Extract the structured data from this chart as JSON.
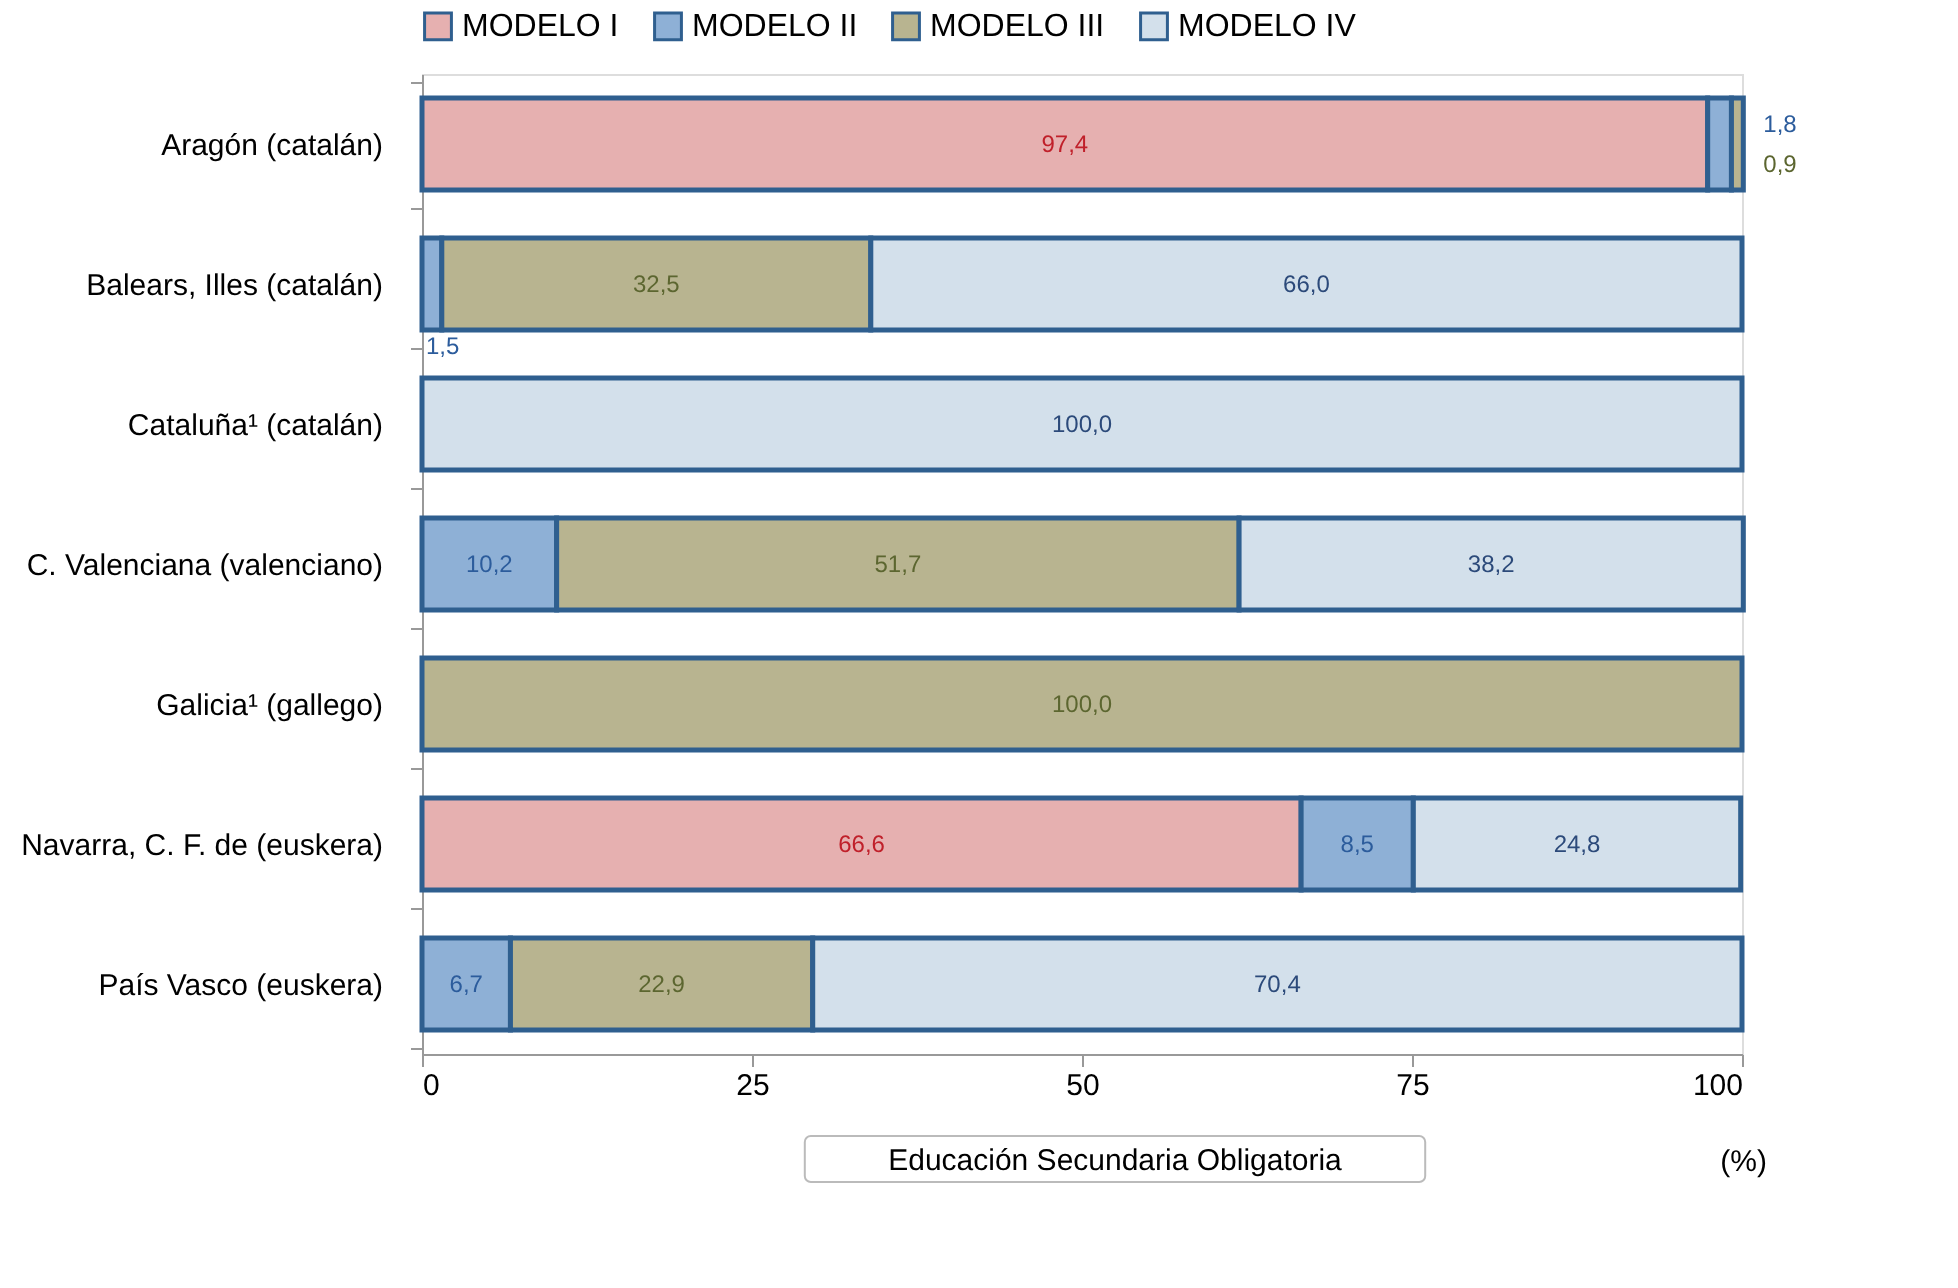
{
  "chart_data": {
    "type": "bar",
    "orientation": "horizontal",
    "stacked": true,
    "categories": [
      "Aragón  (catalán)",
      "Balears, Illes (catalán)",
      "Cataluña¹ (catalán)",
      "C. Valenciana (valenciano)",
      "Galicia¹ (gallego)",
      "Navarra, C. F. de  (euskera)",
      "País Vasco (euskera)"
    ],
    "series": [
      {
        "name": "MODELO I",
        "color": "#e6b0b0",
        "values": [
          97.4,
          null,
          null,
          null,
          null,
          66.6,
          null
        ],
        "value_labels": [
          "97,4",
          null,
          null,
          null,
          null,
          "66,6",
          null
        ]
      },
      {
        "name": "MODELO II",
        "color": "#8eb0d6",
        "values": [
          1.8,
          1.5,
          null,
          10.2,
          null,
          8.5,
          6.7
        ],
        "value_labels": [
          "1,8",
          "1,5",
          null,
          "10,2",
          null,
          "8,5",
          "6,7"
        ]
      },
      {
        "name": "MODELO III",
        "color": "#b8b490",
        "values": [
          0.9,
          32.5,
          null,
          51.7,
          100.0,
          null,
          22.9
        ],
        "value_labels": [
          "0,9",
          "32,5",
          null,
          "51,7",
          "100,0",
          null,
          "22,9"
        ]
      },
      {
        "name": "MODELO IV",
        "color": "#d3e0eb",
        "values": [
          null,
          66.0,
          100.0,
          38.2,
          null,
          24.8,
          70.4
        ],
        "value_labels": [
          null,
          "66,0",
          "100,0",
          "38,2",
          null,
          "24,8",
          "70,4"
        ]
      }
    ],
    "xlim": [
      0,
      100
    ],
    "xticks": [
      0,
      25,
      50,
      75,
      100
    ],
    "xlabel": "(%)",
    "annotations": [
      "Educación Secundaria Obligatoria"
    ],
    "legend": "top",
    "grid": false
  }
}
